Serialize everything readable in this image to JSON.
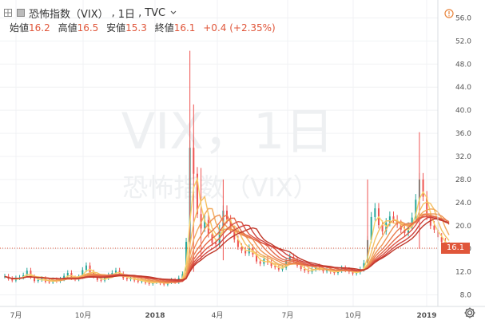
{
  "header": {
    "symbol_name": "恐怖指数（VIX）",
    "interval": "1日",
    "exchange": "TVC",
    "ohlc": [
      {
        "label": "始値",
        "value": "16.2"
      },
      {
        "label": "高値",
        "value": "16.5"
      },
      {
        "label": "安値",
        "value": "15.3"
      },
      {
        "label": "終値",
        "value": "16.1"
      }
    ],
    "change": "+0.4 (+2.35%)"
  },
  "watermark": {
    "line1": "VIX，1日",
    "line2": "恐怖指数（VIX）"
  },
  "last_price_label": "16.1",
  "colors": {
    "accent": "#e0563a",
    "up": "#26a69a",
    "down": "#ef5350",
    "ribbon_fast": "#f7d36b",
    "ribbon_slow": "#c0392b"
  },
  "icons": [
    "expand-icon",
    "collapse-icon",
    "chevron-down-icon",
    "alert-icon",
    "gear-icon"
  ],
  "chart_data": {
    "type": "line",
    "title": "恐怖指数（VIX）",
    "y_ticks": [
      "8.0",
      "12.0",
      "16.0",
      "20.0",
      "24.0",
      "28.0",
      "32.0",
      "36.0",
      "40.0",
      "44.0",
      "48.0",
      "52.0",
      "56.0"
    ],
    "x_ticks": [
      "7月",
      "10月",
      "2018",
      "4月",
      "7月",
      "10月",
      "2019"
    ],
    "ylim": [
      6,
      58
    ],
    "last_value": 16.1,
    "series": [
      {
        "values": [
          [
            0,
            11.2
          ],
          [
            3,
            10.8
          ],
          [
            6,
            10.5
          ],
          [
            9,
            10.9
          ],
          [
            12,
            11.0
          ],
          [
            15,
            11.4
          ],
          [
            18,
            12.2
          ],
          [
            21,
            11.1
          ],
          [
            24,
            10.4
          ],
          [
            27,
            10.6
          ],
          [
            30,
            10.8
          ],
          [
            33,
            10.3
          ],
          [
            36,
            10.2
          ],
          [
            39,
            10.6
          ],
          [
            42,
            10.4
          ],
          [
            45,
            10.7
          ],
          [
            48,
            11.3
          ],
          [
            51,
            11.8
          ],
          [
            54,
            10.9
          ],
          [
            57,
            10.7
          ],
          [
            60,
            11.1
          ],
          [
            63,
            12.3
          ],
          [
            66,
            13.1
          ],
          [
            69,
            11.9
          ],
          [
            72,
            11.2
          ],
          [
            75,
            10.6
          ],
          [
            78,
            10.5
          ],
          [
            81,
            10.9
          ],
          [
            84,
            11.4
          ],
          [
            87,
            11.8
          ],
          [
            90,
            12.2
          ],
          [
            93,
            11.6
          ],
          [
            96,
            10.9
          ],
          [
            99,
            10.7
          ],
          [
            102,
            11.0
          ],
          [
            105,
            10.5
          ],
          [
            108,
            10.3
          ],
          [
            111,
            10.6
          ],
          [
            114,
            10.1
          ],
          [
            117,
            9.9
          ],
          [
            120,
            10.2
          ],
          [
            123,
            10.4
          ],
          [
            126,
            10.0
          ],
          [
            129,
            9.8
          ],
          [
            132,
            10.2
          ],
          [
            135,
            10.5
          ],
          [
            138,
            10.2
          ],
          [
            141,
            10.9
          ],
          [
            144,
            11.6
          ],
          [
            147,
            17.2
          ],
          [
            150,
            33.5
          ],
          [
            153,
            29.0
          ],
          [
            156,
            22.0
          ],
          [
            159,
            19.5
          ],
          [
            162,
            21.0
          ],
          [
            165,
            18.5
          ],
          [
            168,
            17.0
          ],
          [
            171,
            16.8
          ],
          [
            174,
            19.4
          ],
          [
            177,
            22.6
          ],
          [
            180,
            21.0
          ],
          [
            183,
            19.2
          ],
          [
            186,
            17.6
          ],
          [
            189,
            16.3
          ],
          [
            192,
            15.7
          ],
          [
            195,
            15.2
          ],
          [
            198,
            16.1
          ],
          [
            201,
            15.0
          ],
          [
            204,
            13.8
          ],
          [
            207,
            13.4
          ],
          [
            210,
            14.2
          ],
          [
            213,
            13.6
          ],
          [
            216,
            13.0
          ],
          [
            219,
            12.8
          ],
          [
            222,
            12.4
          ],
          [
            225,
            12.7
          ],
          [
            228,
            13.9
          ],
          [
            231,
            14.6
          ],
          [
            234,
            14.0
          ],
          [
            237,
            13.1
          ],
          [
            240,
            12.5
          ],
          [
            243,
            12.2
          ],
          [
            246,
            12.0
          ],
          [
            249,
            12.4
          ],
          [
            252,
            12.9
          ],
          [
            255,
            12.6
          ],
          [
            258,
            12.1
          ],
          [
            261,
            12.3
          ],
          [
            264,
            12.0
          ],
          [
            267,
            11.8
          ],
          [
            270,
            12.2
          ],
          [
            273,
            12.6
          ],
          [
            276,
            12.3
          ],
          [
            279,
            12.0
          ],
          [
            282,
            11.7
          ],
          [
            285,
            11.9
          ],
          [
            288,
            12.4
          ],
          [
            291,
            13.5
          ],
          [
            294,
            17.5
          ],
          [
            297,
            21.5
          ],
          [
            300,
            23.0
          ],
          [
            303,
            20.1
          ],
          [
            306,
            19.0
          ],
          [
            309,
            20.5
          ],
          [
            312,
            21.6
          ],
          [
            315,
            21.0
          ],
          [
            318,
            20.2
          ],
          [
            321,
            19.3
          ],
          [
            324,
            18.7
          ],
          [
            327,
            19.8
          ],
          [
            330,
            21.4
          ],
          [
            333,
            24.5
          ],
          [
            336,
            28.0
          ],
          [
            339,
            25.0
          ],
          [
            342,
            21.6
          ],
          [
            345,
            20.0
          ],
          [
            348,
            19.3
          ],
          [
            351,
            18.0
          ],
          [
            354,
            17.2
          ],
          [
            357,
            16.5
          ],
          [
            360,
            16.1
          ]
        ]
      }
    ]
  }
}
